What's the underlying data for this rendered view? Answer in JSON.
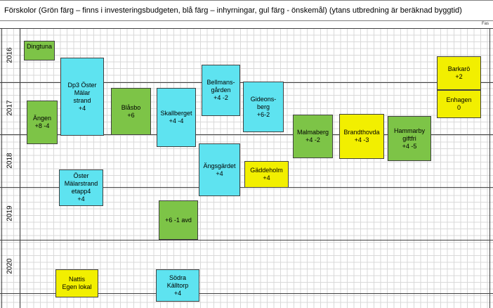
{
  "title": "Förskolor (Grön färg – finns i investeringsbudgeten, blå färg  – inhyrningar, gul färg - önskemål)  (ytans utbredning är beräknad byggtid)",
  "fas_label": "Fas",
  "years": [
    "2016",
    "2017",
    "2018",
    "2019",
    "2020"
  ],
  "colors": {
    "green": "#7dc447",
    "blue": "#5ee3f0",
    "yellow": "#f2ef00"
  },
  "boxes": {
    "dingtuna": "Dingtuna",
    "angen": "Ängen\n+8 -4",
    "dp3": "Dp3 Öster\nMälar\nstrand\n+4",
    "blasbo": "Blåsbo\n+6",
    "skallberget": "Skallberget\n+4 -4",
    "bellmansgarden": "Bellmans-\ngården\n+4 -2",
    "gideonsberg": "Gideons-\nberg\n+6-2",
    "malmaberg": "Malmaberg\n+4 -2",
    "brandthovda": "Brandthovda\n+4 -3",
    "hammarby": "Hammarby\ngiftfri\n+4  -5",
    "barkaro": "Barkarö\n+2",
    "enhagen": "Enhagen\n0",
    "oster_etapp4": "Öster\nMälarstrand\netapp4\n+4",
    "angsgardet": "Ängsgärdet\n+4",
    "gaddeholm": "Gäddeholm\n+4",
    "avd": "+6 -1 avd",
    "nattis": "Nattis\nEgen lokal",
    "sodra_kalltorp": "Södra\nKälltorp\n+4"
  }
}
